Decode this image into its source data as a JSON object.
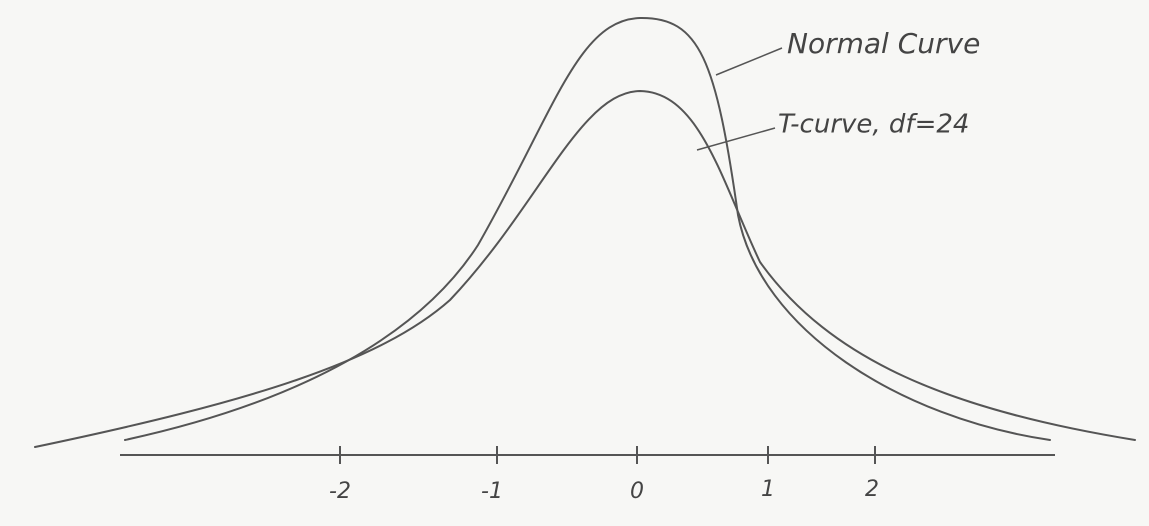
{
  "labels": {
    "normal": "Normal Curve",
    "t_curve": "T-curve, df=24"
  },
  "axis": {
    "ticks": [
      -2,
      -1,
      0,
      1,
      2
    ]
  }
}
